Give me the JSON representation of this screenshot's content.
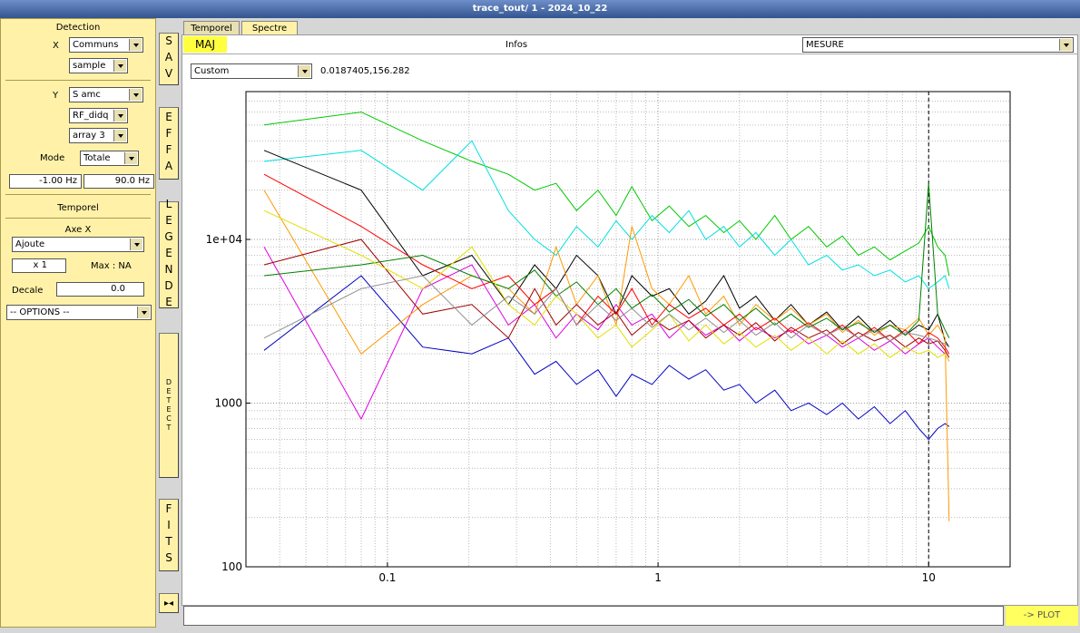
{
  "window": {
    "title": "trace_tout/ 1 - 2024_10_22"
  },
  "left_panel": {
    "detection": "Detection",
    "x_label": "X",
    "x_combo1": "Communs",
    "x_combo2": "sample",
    "y_label": "Y",
    "y_combo1": "S amc",
    "y_combo2": "RF_didq",
    "y_combo3": "array 3",
    "mode_label": "Mode",
    "mode_combo": "Totale",
    "freq_min": "-1.00 Hz",
    "freq_max": "90.0 Hz",
    "temporel": "Temporel",
    "axe_x": "Axe X",
    "axe_combo": "Ajoute",
    "multiplier": "x 1",
    "max": "Max : NA",
    "decale_label": "Decale",
    "decale_value": "0.0",
    "options": "-- OPTIONS --"
  },
  "side_buttons": [
    "SAV",
    "EFFA",
    "LEGENDE",
    "DETECT",
    "FITS"
  ],
  "tabs": [
    "Temporel",
    "Spectre"
  ],
  "toolbar": {
    "maj": "MAJ",
    "infos": "Infos",
    "mesure": "MESURE",
    "preset": "Custom",
    "cursor": "0.0187405,156.282",
    "plot_button": "-> PLOT"
  },
  "chart_data": {
    "type": "line",
    "xscale": "log",
    "yscale": "log",
    "grid": true,
    "minor_grid": true,
    "xlim": [
      0.03,
      20
    ],
    "ylim": [
      100,
      80000
    ],
    "xticks": [
      0.1,
      1,
      10
    ],
    "yticks": [
      100,
      1000,
      {
        "value": 10000,
        "label": "1e+04"
      }
    ],
    "vline": 10,
    "x": [
      0.035,
      0.08,
      0.135,
      0.205,
      0.28,
      0.35,
      0.42,
      0.5,
      0.6,
      0.7,
      0.8,
      0.95,
      1.1,
      1.3,
      1.5,
      1.75,
      2,
      2.3,
      2.7,
      3.1,
      3.6,
      4.2,
      4.8,
      5.5,
      6.3,
      7.2,
      8.2,
      9.2,
      10,
      10.8,
      11.5,
      11.9
    ],
    "series": [
      {
        "color": "#0000c0",
        "values": [
          2100,
          6000,
          2200,
          2000,
          2500,
          1500,
          1800,
          1300,
          1600,
          1100,
          1500,
          1300,
          1700,
          1400,
          1600,
          1200,
          1300,
          1000,
          1200,
          900,
          1000,
          850,
          1000,
          800,
          950,
          750,
          900,
          700,
          600,
          700,
          750,
          720
        ]
      },
      {
        "color": "#00c800",
        "values": [
          50000,
          60000,
          40000,
          30000,
          25000,
          20000,
          22000,
          15000,
          20000,
          14000,
          21000,
          13000,
          16000,
          12000,
          14000,
          11000,
          13000,
          10000,
          14000,
          10000,
          12000,
          9000,
          10500,
          8000,
          9000,
          7500,
          8500,
          9500,
          12000,
          9000,
          8000,
          6000
        ]
      },
      {
        "color": "#00e0e0",
        "values": [
          30000,
          35000,
          20000,
          40000,
          15000,
          10000,
          8000,
          12000,
          9000,
          13000,
          10000,
          14000,
          11000,
          15000,
          10000,
          12000,
          9000,
          11000,
          8000,
          10000,
          7000,
          8000,
          6500,
          7000,
          6000,
          6500,
          5500,
          6000,
          5000,
          5500,
          6000,
          5000
        ]
      },
      {
        "color": "#e000e0",
        "values": [
          9000,
          800,
          5000,
          7000,
          3000,
          4000,
          2500,
          3500,
          2800,
          4000,
          3000,
          3500,
          2500,
          3200,
          2600,
          3000,
          2400,
          2900,
          2500,
          2800,
          2300,
          2600,
          2200,
          2500,
          2100,
          2400,
          2000,
          2300,
          2500,
          2200,
          2000,
          1800
        ]
      },
      {
        "color": "#000000",
        "values": [
          35000,
          20000,
          6000,
          8000,
          4000,
          7000,
          5000,
          8000,
          6000,
          3500,
          6000,
          4500,
          5000,
          3500,
          4200,
          6000,
          3800,
          4500,
          3200,
          4000,
          3000,
          3600,
          2800,
          3400,
          2700,
          3200,
          2600,
          3000,
          2800,
          3500,
          2400,
          2200
        ]
      },
      {
        "color": "#ff9900",
        "values": [
          20000,
          2000,
          4000,
          6000,
          5000,
          3500,
          9000,
          4000,
          6000,
          3000,
          12000,
          5000,
          4000,
          6000,
          3500,
          4500,
          3000,
          4000,
          3200,
          3800,
          3000,
          3500,
          2700,
          3200,
          2600,
          3000,
          2800,
          3300,
          2600,
          3000,
          2500,
          190
        ]
      },
      {
        "color": "#ff0000",
        "values": [
          25000,
          12000,
          7000,
          5000,
          6000,
          4000,
          5000,
          3000,
          4500,
          3500,
          5000,
          3000,
          4000,
          3300,
          3800,
          3000,
          3500,
          2800,
          3300,
          2700,
          3100,
          2600,
          3000,
          2500,
          2900,
          2400,
          2800,
          2300,
          2700,
          2500,
          2200,
          2000
        ]
      },
      {
        "color": "#a00000",
        "values": [
          7000,
          10000,
          3500,
          4000,
          2500,
          5000,
          3000,
          4000,
          3000,
          3600,
          2600,
          3300,
          2800,
          3200,
          2500,
          3000,
          2600,
          3100,
          2400,
          2900,
          2500,
          2800,
          2300,
          2700,
          2400,
          2600,
          2200,
          2500,
          2300,
          2400,
          2100,
          1900
        ]
      },
      {
        "color": "#008000",
        "values": [
          6000,
          7000,
          8000,
          6000,
          5000,
          6500,
          4500,
          5500,
          4000,
          5000,
          3800,
          4600,
          3600,
          4300,
          3400,
          4000,
          3200,
          3800,
          3000,
          3500,
          2900,
          3300,
          2800,
          3100,
          2700,
          3000,
          2600,
          3200,
          22000,
          3500,
          2800,
          2500
        ]
      },
      {
        "color": "#e0e000",
        "values": [
          15000,
          8000,
          5000,
          9000,
          4000,
          3000,
          4500,
          3500,
          2500,
          3000,
          2200,
          2800,
          3500,
          2400,
          3000,
          2300,
          2700,
          2200,
          2600,
          2100,
          2500,
          2000,
          2400,
          2000,
          2300,
          1900,
          2200,
          2000,
          2100,
          1900,
          2000,
          1800
        ]
      },
      {
        "color": "#909090",
        "values": [
          2500,
          5000,
          6000,
          3000,
          4500,
          3500,
          5000,
          3000,
          4000,
          3200,
          3800,
          2900,
          3500,
          2800,
          3300,
          2700,
          3200,
          2600,
          3100,
          2500,
          3000,
          2600,
          2900,
          2500,
          2800,
          2400,
          2700,
          2600,
          2500,
          2400,
          2300,
          2200
        ]
      }
    ]
  }
}
